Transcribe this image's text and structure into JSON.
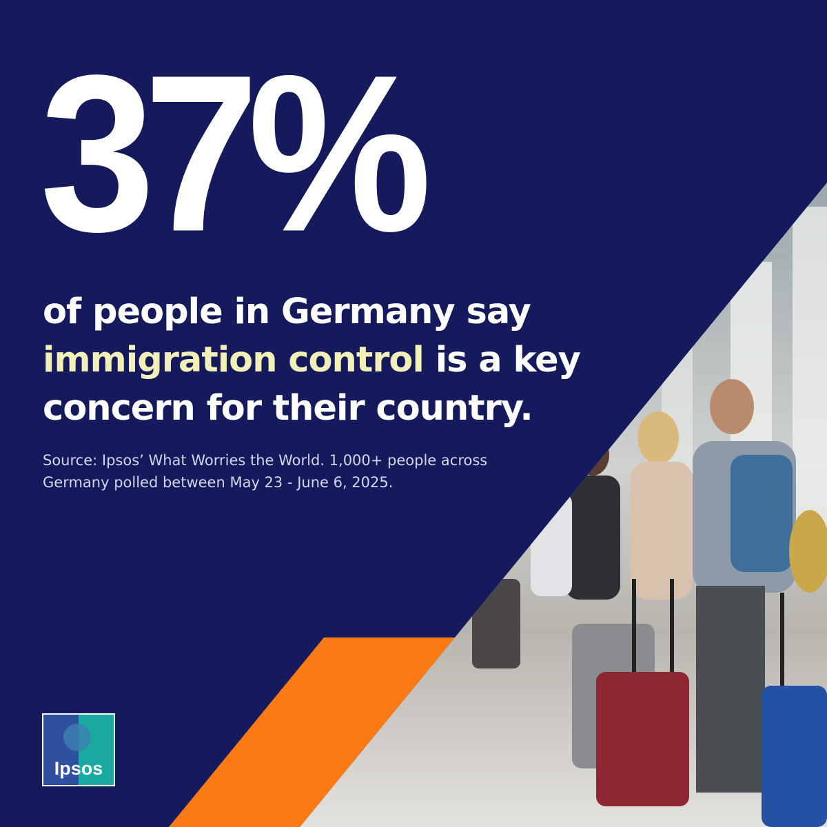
{
  "headline": {
    "stat": "37%",
    "lines": [
      "of people in Germany say",
      "immigration control",
      "is a key",
      "concern for their country."
    ]
  },
  "source": [
    "Source: Ipsos’ What Worries the World. 1,000+ people across",
    "Germany polled between May 23 - June 6, 2025."
  ],
  "logo": {
    "text": "Ipsos"
  }
}
